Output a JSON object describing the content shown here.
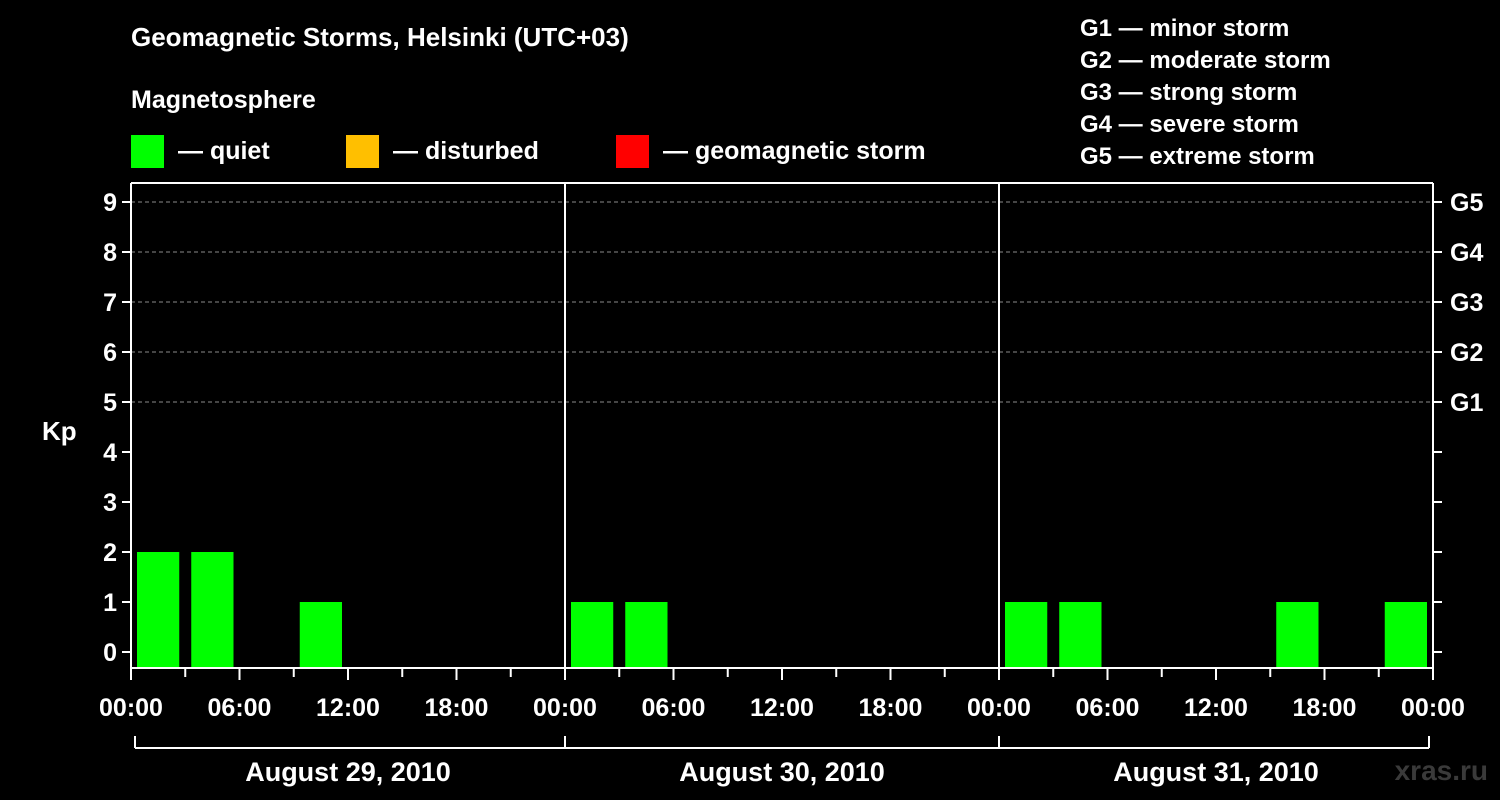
{
  "header": {
    "title": "Geomagnetic Storms, Helsinki (UTC+03)",
    "subtitle": "Magnetosphere"
  },
  "legend": [
    {
      "label": "— quiet",
      "color": "#00ff00"
    },
    {
      "label": "— disturbed",
      "color": "#ffbf00"
    },
    {
      "label": "— geomagnetic storm",
      "color": "#ff0000"
    }
  ],
  "storm_scale": [
    "G1 — minor storm",
    "G2 — moderate storm",
    "G3 — strong storm",
    "G4 — severe storm",
    "G5 — extreme storm"
  ],
  "watermark": "xras.ru",
  "chart_data": {
    "type": "bar",
    "ylabel": "Kp",
    "ylim": [
      0,
      9
    ],
    "y_ticks": [
      0,
      1,
      2,
      3,
      4,
      5,
      6,
      7,
      8,
      9
    ],
    "g_levels": [
      {
        "label": "G1",
        "kp": 5
      },
      {
        "label": "G2",
        "kp": 6
      },
      {
        "label": "G3",
        "kp": 7
      },
      {
        "label": "G4",
        "kp": 8
      },
      {
        "label": "G5",
        "kp": 9
      }
    ],
    "x_tick_labels": [
      "00:00",
      "06:00",
      "12:00",
      "18:00",
      "00:00",
      "06:00",
      "12:00",
      "18:00",
      "00:00",
      "06:00",
      "12:00",
      "18:00",
      "00:00"
    ],
    "days": [
      "August 29, 2010",
      "August 30, 2010",
      "August 31, 2010"
    ],
    "interval_hours": 3,
    "grid": true,
    "series": [
      {
        "values": [
          2,
          2,
          0,
          1,
          0,
          0,
          0,
          0,
          1,
          1,
          0,
          0,
          0,
          0,
          0,
          0,
          1,
          1,
          0,
          0,
          0,
          1,
          0,
          1
        ]
      }
    ],
    "bar_color": "#00ff00"
  }
}
